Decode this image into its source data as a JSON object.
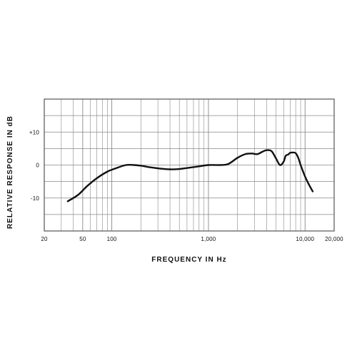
{
  "chart_data": {
    "type": "line",
    "title": "",
    "xlabel": "FREQUENCY IN Hz",
    "ylabel": "RELATIVE RESPONSE IN dB",
    "x_scale": "log",
    "xlim": [
      20,
      20000
    ],
    "ylim": [
      -20,
      20
    ],
    "x_ticks": [
      {
        "value": 20,
        "label": "20"
      },
      {
        "value": 50,
        "label": "50"
      },
      {
        "value": 100,
        "label": "100"
      },
      {
        "value": 1000,
        "label": "1,000"
      },
      {
        "value": 10000,
        "label": "10,000"
      },
      {
        "value": 20000,
        "label": "20,000"
      }
    ],
    "y_ticks": [
      {
        "value": 10,
        "label": "+10"
      },
      {
        "value": 0,
        "label": "0"
      },
      {
        "value": -10,
        "label": "-10"
      }
    ],
    "grid": true,
    "legend": "none",
    "colors": {
      "line": "#111111",
      "grid": "#888888",
      "frame": "#555555"
    },
    "series": [
      {
        "x": [
          35,
          45,
          55,
          70,
          90,
          110,
          140,
          170,
          200,
          250,
          300,
          400,
          500,
          600,
          800,
          1000,
          1300,
          1600,
          2000,
          2400,
          2800,
          3200,
          3600,
          4000,
          4500,
          5000,
          5500,
          6000,
          6300,
          6700,
          7000,
          7500,
          8000,
          8500,
          9000,
          10000,
          11000,
          12000
        ],
        "y": [
          -11,
          -9,
          -6.5,
          -4,
          -2,
          -1,
          0,
          0,
          -0.2,
          -0.7,
          -1,
          -1.3,
          -1.2,
          -0.9,
          -0.4,
          0,
          0,
          0.3,
          2.2,
          3.3,
          3.5,
          3.3,
          4,
          4.5,
          4.2,
          2,
          0,
          1,
          2.8,
          3.2,
          3.7,
          3.8,
          3.6,
          2.2,
          0,
          -3.5,
          -6,
          -8
        ]
      }
    ]
  }
}
